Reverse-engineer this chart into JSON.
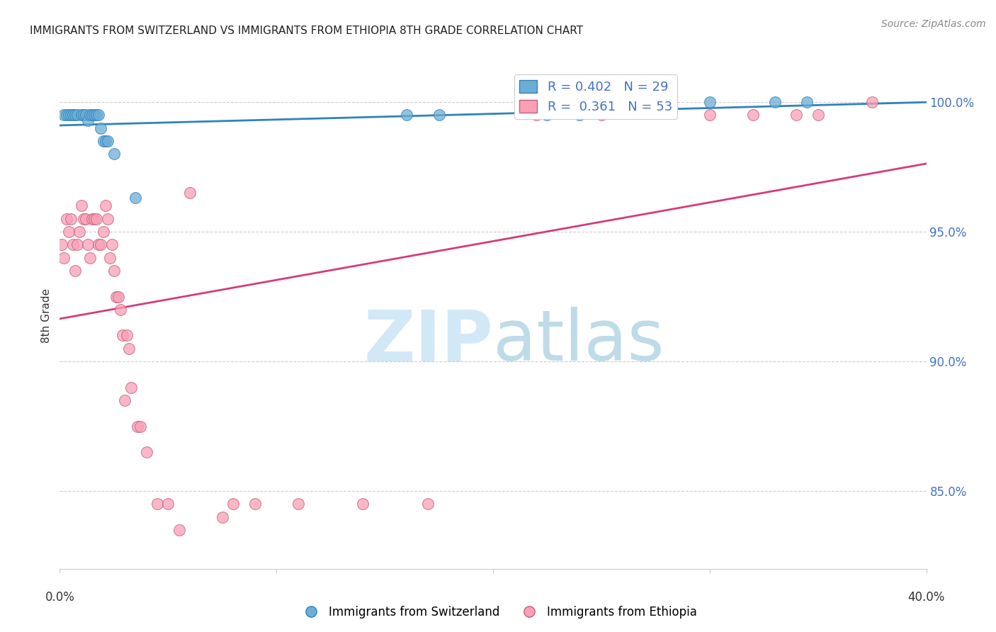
{
  "title": "IMMIGRANTS FROM SWITZERLAND VS IMMIGRANTS FROM ETHIOPIA 8TH GRADE CORRELATION CHART",
  "source": "Source: ZipAtlas.com",
  "ylabel": "8th Grade",
  "xlim": [
    0.0,
    40.0
  ],
  "ylim": [
    82.0,
    101.5
  ],
  "color_swiss": "#6baed6",
  "color_eth": "#fa9fb5",
  "color_trendline_swiss": "#3182bd",
  "color_trendline_eth": "#d63b7a",
  "swiss_x": [
    0.2,
    0.3,
    0.4,
    0.5,
    0.6,
    0.7,
    0.8,
    1.0,
    1.1,
    1.2,
    1.3,
    1.4,
    1.5,
    1.6,
    1.7,
    1.8,
    1.9,
    2.0,
    2.1,
    2.2,
    2.5,
    3.5,
    16.0,
    17.5,
    22.5,
    24.0,
    30.0,
    33.0,
    34.5
  ],
  "swiss_y": [
    99.5,
    99.5,
    99.5,
    99.5,
    99.5,
    99.5,
    99.5,
    99.5,
    99.5,
    99.5,
    99.3,
    99.5,
    99.5,
    99.5,
    99.5,
    99.5,
    99.0,
    98.5,
    98.5,
    98.5,
    98.0,
    96.3,
    99.5,
    99.5,
    99.5,
    99.5,
    100.0,
    100.0,
    100.0
  ],
  "eth_x": [
    0.1,
    0.2,
    0.3,
    0.4,
    0.5,
    0.6,
    0.7,
    0.8,
    0.9,
    1.0,
    1.1,
    1.2,
    1.3,
    1.4,
    1.5,
    1.6,
    1.7,
    1.8,
    1.9,
    2.0,
    2.1,
    2.2,
    2.3,
    2.4,
    2.5,
    2.6,
    2.7,
    2.8,
    2.9,
    3.0,
    3.1,
    3.2,
    3.3,
    3.6,
    3.7,
    4.0,
    4.5,
    5.0,
    5.5,
    6.0,
    7.5,
    8.0,
    9.0,
    11.0,
    14.0,
    17.0,
    22.0,
    25.0,
    30.0,
    32.0,
    34.0,
    35.0,
    37.5
  ],
  "eth_y": [
    94.5,
    94.0,
    95.5,
    95.0,
    95.5,
    94.5,
    93.5,
    94.5,
    95.0,
    96.0,
    95.5,
    95.5,
    94.5,
    94.0,
    95.5,
    95.5,
    95.5,
    94.5,
    94.5,
    95.0,
    96.0,
    95.5,
    94.0,
    94.5,
    93.5,
    92.5,
    92.5,
    92.0,
    91.0,
    88.5,
    91.0,
    90.5,
    89.0,
    87.5,
    87.5,
    86.5,
    84.5,
    84.5,
    83.5,
    96.5,
    84.0,
    84.5,
    84.5,
    84.5,
    84.5,
    84.5,
    99.5,
    99.5,
    99.5,
    99.5,
    99.5,
    99.5,
    100.0
  ],
  "legend_label_swiss": "R = 0.402   N = 29",
  "legend_label_eth": "R =  0.361   N = 53",
  "bottom_legend_swiss": "Immigrants from Switzerland",
  "bottom_legend_eth": "Immigrants from Ethiopia",
  "ytick_vals": [
    85,
    90,
    95,
    100
  ],
  "ytick_labels": [
    "85.0%",
    "90.0%",
    "95.0%",
    "100.0%"
  ],
  "ytick_color": "#4472c4",
  "grid_color": "#cccccc",
  "watermark_zip_color": "#cce4f5",
  "watermark_atlas_color": "#8bbfd4"
}
